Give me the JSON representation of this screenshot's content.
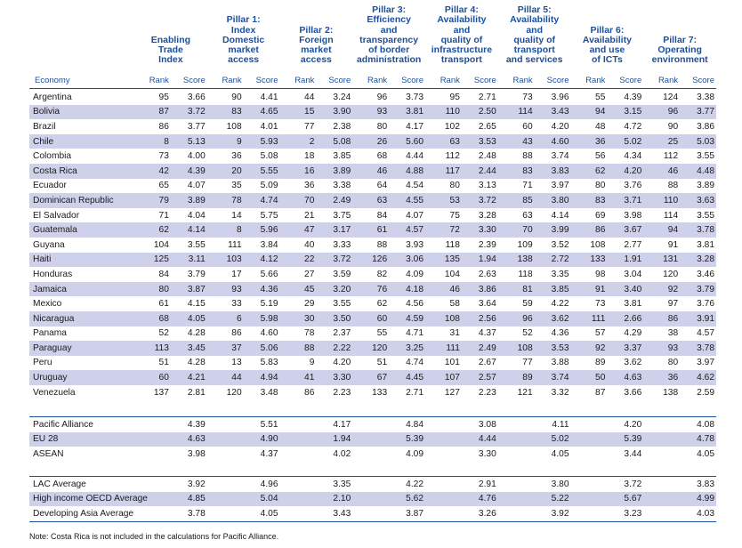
{
  "pillar_headers": [
    "Enabling\nTrade\nIndex",
    "Pillar 1:\nIndex\nDomestic\nmarket\naccess",
    "Pillar 2:\nForeign\nmarket\naccess",
    "Pillar 3:\nEfficiency\nand\ntransparency\nof border\nadministration",
    "Pillar 4:\nAvailability\nand\nquality of\ninfrastructure\ntransport",
    "Pillar 5:\nAvailability\nand\nquality of\ntransport\nand services",
    "Pillar 6:\nAvailability\nand use\nof ICTs",
    "Pillar 7:\nOperating\nenvironment"
  ],
  "column_headers": {
    "economy": "Economy",
    "rank": "Rank",
    "score": "Score"
  },
  "countries": [
    {
      "name": "Argentina",
      "v": [
        "95",
        "3.66",
        "90",
        "4.41",
        "44",
        "3.24",
        "96",
        "3.73",
        "95",
        "2.71",
        "73",
        "3.96",
        "55",
        "4.39",
        "124",
        "3.38"
      ]
    },
    {
      "name": "Bolivia",
      "v": [
        "87",
        "3.72",
        "83",
        "4.65",
        "15",
        "3.90",
        "93",
        "3.81",
        "110",
        "2.50",
        "114",
        "3.43",
        "94",
        "3.15",
        "96",
        "3.77"
      ]
    },
    {
      "name": "Brazil",
      "v": [
        "86",
        "3.77",
        "108",
        "4.01",
        "77",
        "2.38",
        "80",
        "4.17",
        "102",
        "2.65",
        "60",
        "4.20",
        "48",
        "4.72",
        "90",
        "3.86"
      ]
    },
    {
      "name": "Chile",
      "v": [
        "8",
        "5.13",
        "9",
        "5.93",
        "2",
        "5.08",
        "26",
        "5.60",
        "63",
        "3.53",
        "43",
        "4.60",
        "36",
        "5.02",
        "25",
        "5.03"
      ]
    },
    {
      "name": "Colombia",
      "v": [
        "73",
        "4.00",
        "36",
        "5.08",
        "18",
        "3.85",
        "68",
        "4.44",
        "112",
        "2.48",
        "88",
        "3.74",
        "56",
        "4.34",
        "112",
        "3.55"
      ]
    },
    {
      "name": "Costa Rica",
      "v": [
        "42",
        "4.39",
        "20",
        "5.55",
        "16",
        "3.89",
        "46",
        "4.88",
        "117",
        "2.44",
        "83",
        "3.83",
        "62",
        "4.20",
        "46",
        "4.48"
      ]
    },
    {
      "name": "Ecuador",
      "v": [
        "65",
        "4.07",
        "35",
        "5.09",
        "36",
        "3.38",
        "64",
        "4.54",
        "80",
        "3.13",
        "71",
        "3.97",
        "80",
        "3.76",
        "88",
        "3.89"
      ]
    },
    {
      "name": "Dominican Republic",
      "v": [
        "79",
        "3.89",
        "78",
        "4.74",
        "70",
        "2.49",
        "63",
        "4.55",
        "53",
        "3.72",
        "85",
        "3.80",
        "83",
        "3.71",
        "110",
        "3.63"
      ]
    },
    {
      "name": "El Salvador",
      "v": [
        "71",
        "4.04",
        "14",
        "5.75",
        "21",
        "3.75",
        "84",
        "4.07",
        "75",
        "3.28",
        "63",
        "4.14",
        "69",
        "3.98",
        "114",
        "3.55"
      ]
    },
    {
      "name": "Guatemala",
      "v": [
        "62",
        "4.14",
        "8",
        "5.96",
        "47",
        "3.17",
        "61",
        "4.57",
        "72",
        "3.30",
        "70",
        "3.99",
        "86",
        "3.67",
        "94",
        "3.78"
      ]
    },
    {
      "name": "Guyana",
      "v": [
        "104",
        "3.55",
        "111",
        "3.84",
        "40",
        "3.33",
        "88",
        "3.93",
        "118",
        "2.39",
        "109",
        "3.52",
        "108",
        "2.77",
        "91",
        "3.81"
      ]
    },
    {
      "name": "Haiti",
      "v": [
        "125",
        "3.11",
        "103",
        "4.12",
        "22",
        "3.72",
        "126",
        "3.06",
        "135",
        "1.94",
        "138",
        "2.72",
        "133",
        "1.91",
        "131",
        "3.28"
      ]
    },
    {
      "name": "Honduras",
      "v": [
        "84",
        "3.79",
        "17",
        "5.66",
        "27",
        "3.59",
        "82",
        "4.09",
        "104",
        "2.63",
        "118",
        "3.35",
        "98",
        "3.04",
        "120",
        "3.46"
      ]
    },
    {
      "name": "Jamaica",
      "v": [
        "80",
        "3.87",
        "93",
        "4.36",
        "45",
        "3.20",
        "76",
        "4.18",
        "46",
        "3.86",
        "81",
        "3.85",
        "91",
        "3.40",
        "92",
        "3.79"
      ]
    },
    {
      "name": "Mexico",
      "v": [
        "61",
        "4.15",
        "33",
        "5.19",
        "29",
        "3.55",
        "62",
        "4.56",
        "58",
        "3.64",
        "59",
        "4.22",
        "73",
        "3.81",
        "97",
        "3.76"
      ]
    },
    {
      "name": "Nicaragua",
      "v": [
        "68",
        "4.05",
        "6",
        "5.98",
        "30",
        "3.50",
        "60",
        "4.59",
        "108",
        "2.56",
        "96",
        "3.62",
        "111",
        "2.66",
        "86",
        "3.91"
      ]
    },
    {
      "name": "Panama",
      "v": [
        "52",
        "4.28",
        "86",
        "4.60",
        "78",
        "2.37",
        "55",
        "4.71",
        "31",
        "4.37",
        "52",
        "4.36",
        "57",
        "4.29",
        "38",
        "4.57"
      ]
    },
    {
      "name": "Paraguay",
      "v": [
        "113",
        "3.45",
        "37",
        "5.06",
        "88",
        "2.22",
        "120",
        "3.25",
        "111",
        "2.49",
        "108",
        "3.53",
        "92",
        "3.37",
        "93",
        "3.78"
      ]
    },
    {
      "name": "Peru",
      "v": [
        "51",
        "4.28",
        "13",
        "5.83",
        "9",
        "4.20",
        "51",
        "4.74",
        "101",
        "2.67",
        "77",
        "3.88",
        "89",
        "3.62",
        "80",
        "3.97"
      ]
    },
    {
      "name": "Uruguay",
      "v": [
        "60",
        "4.21",
        "44",
        "4.94",
        "41",
        "3.30",
        "67",
        "4.45",
        "107",
        "2.57",
        "89",
        "3.74",
        "50",
        "4.63",
        "36",
        "4.62"
      ]
    },
    {
      "name": "Venezuela",
      "v": [
        "137",
        "2.81",
        "120",
        "3.48",
        "86",
        "2.23",
        "133",
        "2.71",
        "127",
        "2.23",
        "121",
        "3.32",
        "87",
        "3.66",
        "138",
        "2.59"
      ]
    }
  ],
  "groups": [
    {
      "name": "Pacific Alliance",
      "v": [
        "4.39",
        "5.51",
        "4.17",
        "4.84",
        "3.08",
        "4.11",
        "4.20",
        "4.08"
      ]
    },
    {
      "name": "EU 28",
      "v": [
        "4.63",
        "4.90",
        "1.94",
        "5.39",
        "4.44",
        "5.02",
        "5.39",
        "4.78"
      ]
    },
    {
      "name": "ASEAN",
      "v": [
        "3.98",
        "4.37",
        "4.02",
        "4.09",
        "3.30",
        "4.05",
        "3.44",
        "4.05"
      ]
    }
  ],
  "averages": [
    {
      "name": "LAC Average",
      "v": [
        "3.92",
        "4.96",
        "3.35",
        "4.22",
        "2.91",
        "3.80",
        "3.72",
        "3.83"
      ]
    },
    {
      "name": "High income OECD Average",
      "v": [
        "4.85",
        "5.04",
        "2.10",
        "5.62",
        "4.76",
        "5.22",
        "5.67",
        "4.99"
      ]
    },
    {
      "name": "Developing Asia Average",
      "v": [
        "3.78",
        "4.05",
        "3.43",
        "3.87",
        "3.26",
        "3.92",
        "3.23",
        "4.03"
      ]
    }
  ],
  "note": "Note: Costa Rica is not included in the calculations for Pacific Alliance.",
  "colors": {
    "header_blue": "#1c4f9c",
    "stripe": "#cfd1ea"
  }
}
